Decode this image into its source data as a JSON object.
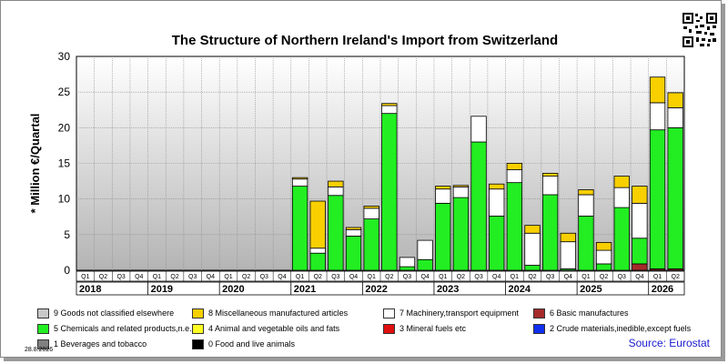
{
  "chart_data": {
    "type": "bar",
    "stacked": true,
    "title": "The Structure of Northern Ireland's Import from Switzerland",
    "ylabel": "* Million €/Quartal",
    "ylim": [
      0,
      30
    ],
    "yticks": [
      0,
      5,
      10,
      15,
      20,
      25,
      30
    ],
    "grid": true,
    "categories": [
      "Q1",
      "Q2",
      "Q3",
      "Q4",
      "Q1",
      "Q2",
      "Q3",
      "Q4",
      "Q1",
      "Q2",
      "Q3",
      "Q4",
      "Q1",
      "Q2",
      "Q3",
      "Q4",
      "Q1",
      "Q2",
      "Q3",
      "Q4",
      "Q1",
      "Q2",
      "Q3",
      "Q4",
      "Q1",
      "Q2",
      "Q3",
      "Q4",
      "Q1",
      "Q2",
      "Q3",
      "Q4",
      "Q1",
      "Q2"
    ],
    "years": [
      {
        "label": "2018",
        "quarters": 4
      },
      {
        "label": "2019",
        "quarters": 4
      },
      {
        "label": "2020",
        "quarters": 4
      },
      {
        "label": "2021",
        "quarters": 4
      },
      {
        "label": "2022",
        "quarters": 4
      },
      {
        "label": "2023",
        "quarters": 4
      },
      {
        "label": "2024",
        "quarters": 4
      },
      {
        "label": "2025",
        "quarters": 4
      },
      {
        "label": "2026",
        "quarters": 2
      }
    ],
    "series": [
      {
        "name": "0 Food and live animals",
        "color": "#000000",
        "values": [
          0,
          0,
          0,
          0,
          0,
          0,
          0,
          0,
          0,
          0,
          0,
          0,
          0,
          0,
          0,
          0,
          0,
          0,
          0,
          0,
          0,
          0,
          0,
          0,
          0,
          0,
          0,
          0,
          0,
          0,
          0,
          0,
          0,
          0
        ]
      },
      {
        "name": "3 Mineral fuels etc",
        "color": "#e01010",
        "values": [
          0,
          0,
          0,
          0,
          0,
          0,
          0,
          0,
          0,
          0,
          0,
          0,
          0,
          0,
          0,
          0,
          0,
          0,
          0,
          0,
          0,
          0,
          0,
          0,
          0,
          0,
          0,
          0,
          0,
          0,
          0,
          0,
          0,
          0
        ]
      },
      {
        "name": "6 Basic manufactures",
        "color": "#a52a2a",
        "values": [
          0,
          0,
          0,
          0,
          0,
          0,
          0,
          0,
          0,
          0,
          0,
          0,
          0,
          0,
          0,
          0,
          0,
          0,
          0,
          0,
          0,
          0,
          0,
          0,
          0,
          0,
          0,
          0,
          0,
          0,
          0,
          0.9,
          0.2,
          0.2
        ]
      },
      {
        "name": "5 Chemicals and related products,n.e.s.",
        "color": "#22ee22",
        "values": [
          0,
          0,
          0,
          0,
          0,
          0,
          0,
          0,
          0,
          0,
          0,
          0,
          11.8,
          2.4,
          10.5,
          4.8,
          7.2,
          22,
          0.5,
          1.5,
          9.4,
          10.2,
          18,
          7.6,
          12.3,
          0.7,
          10.6,
          0.2,
          7.6,
          0.9,
          8.8,
          3.6,
          19.5,
          19.8
        ]
      },
      {
        "name": "7 Machinery,transport equipment",
        "color": "#ffffff",
        "values": [
          0,
          0,
          0,
          0,
          0,
          0,
          0,
          0,
          0,
          0,
          0,
          0,
          1,
          0.7,
          1.2,
          0.9,
          1.5,
          1.1,
          1.3,
          2.7,
          2,
          1.5,
          3.6,
          3.8,
          1.8,
          4.5,
          2.6,
          3.8,
          3,
          1.9,
          2.8,
          4.9,
          3.8,
          2.8
        ]
      },
      {
        "name": "8 Miscellaneous manufactured articles",
        "color": "#f8d000",
        "values": [
          0,
          0,
          0,
          0,
          0,
          0,
          0,
          0,
          0,
          0,
          0,
          0,
          0.2,
          6.6,
          0.8,
          0.3,
          0.3,
          0.3,
          0,
          0,
          0.4,
          0.2,
          0,
          0.7,
          0.9,
          1.1,
          0.4,
          1.2,
          0.7,
          1.1,
          1.6,
          2.4,
          3.6,
          2.1
        ]
      }
    ]
  },
  "legend": [
    {
      "label": "9 Goods not classified elsewhere",
      "color": "#c8c8c8"
    },
    {
      "label": "8 Miscellaneous manufactured articles",
      "color": "#f8d000"
    },
    {
      "label": "7 Machinery,transport equipment",
      "color": "#ffffff"
    },
    {
      "label": "6 Basic manufactures",
      "color": "#a52a2a"
    },
    {
      "label": "5 Chemicals and related products,n.e.s.",
      "color": "#22ee22"
    },
    {
      "label": "4 Animal and vegetable oils and fats",
      "color": "#ffff22"
    },
    {
      "label": "3 Mineral fuels etc",
      "color": "#e01010"
    },
    {
      "label": "2 Crude materials,inedible,except fuels",
      "color": "#1030ee"
    },
    {
      "label": "1 Beverages and tobacco",
      "color": "#808080"
    },
    {
      "label": "0 Food and live animals",
      "color": "#000000"
    }
  ],
  "footer": {
    "date": "28.8.2026",
    "source": "Source: Eurostat"
  }
}
